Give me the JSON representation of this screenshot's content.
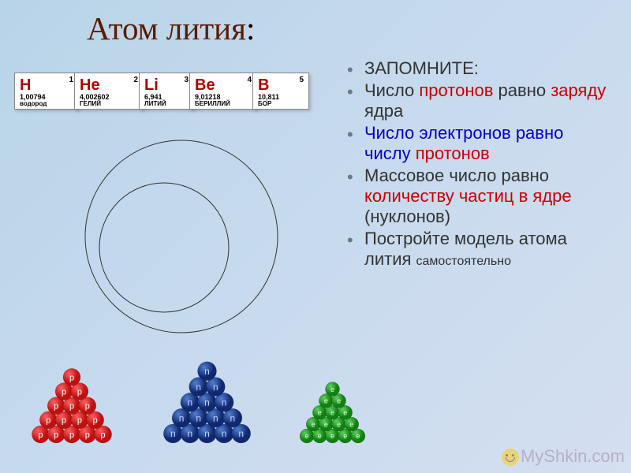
{
  "title": {
    "text": "Атом лития",
    "color": "#5a1a00",
    "colon": ":"
  },
  "list": {
    "item1": "ЗАПОМНИТЕ:",
    "item2_a": "Число ",
    "item2_b": "протонов",
    "item2_c": " равно ",
    "item2_d": "заряду",
    "item2_e": " ядра",
    "item3_a": "Число ",
    "item3_b": "электронов",
    "item3_c": " равно числу ",
    "item3_d": "протонов",
    "item4_a": "Массовое число равно ",
    "item4_b": "количеству частиц в ядре",
    "item4_c": " (нуклонов)",
    "item5": "Постройте модель атома лития ",
    "item5_small": "самостоятельно"
  },
  "elements": [
    {
      "sym": "H",
      "num": "1",
      "mass": "1,00794",
      "name": "водород"
    },
    {
      "sym": "He",
      "num": "2",
      "mass": "4,002602",
      "name": "ГЕЛИЙ"
    },
    {
      "sym": "Li",
      "num": "3",
      "mass": "6,941",
      "name": "ЛИТИЙ"
    },
    {
      "sym": "Be",
      "num": "4",
      "mass": "9,01218",
      "name": "БЕРИЛЛИЙ"
    },
    {
      "sym": "B",
      "num": "5",
      "mass": "10,811",
      "name": "БОР"
    }
  ],
  "circles": {
    "outer_r": 122,
    "inner_r": 82,
    "stroke": "#333333",
    "stroke_width": 1
  },
  "pyramids": {
    "red": {
      "rows": 5,
      "ball_r": 11,
      "fill_light": "#ff6060",
      "fill_dark": "#c01010",
      "label": "p",
      "label_color": "#ffffff"
    },
    "blue": {
      "rows": 5,
      "ball_r": 12,
      "fill_light": "#5080d0",
      "fill_dark": "#102870",
      "label": "n",
      "label_color": "#c0d0ff"
    },
    "green": {
      "rows": 5,
      "ball_r": 9,
      "fill_light": "#60d060",
      "fill_dark": "#108010",
      "label": "e",
      "label_color": "#e0ffe0"
    }
  },
  "watermark": "MyShkin.com"
}
